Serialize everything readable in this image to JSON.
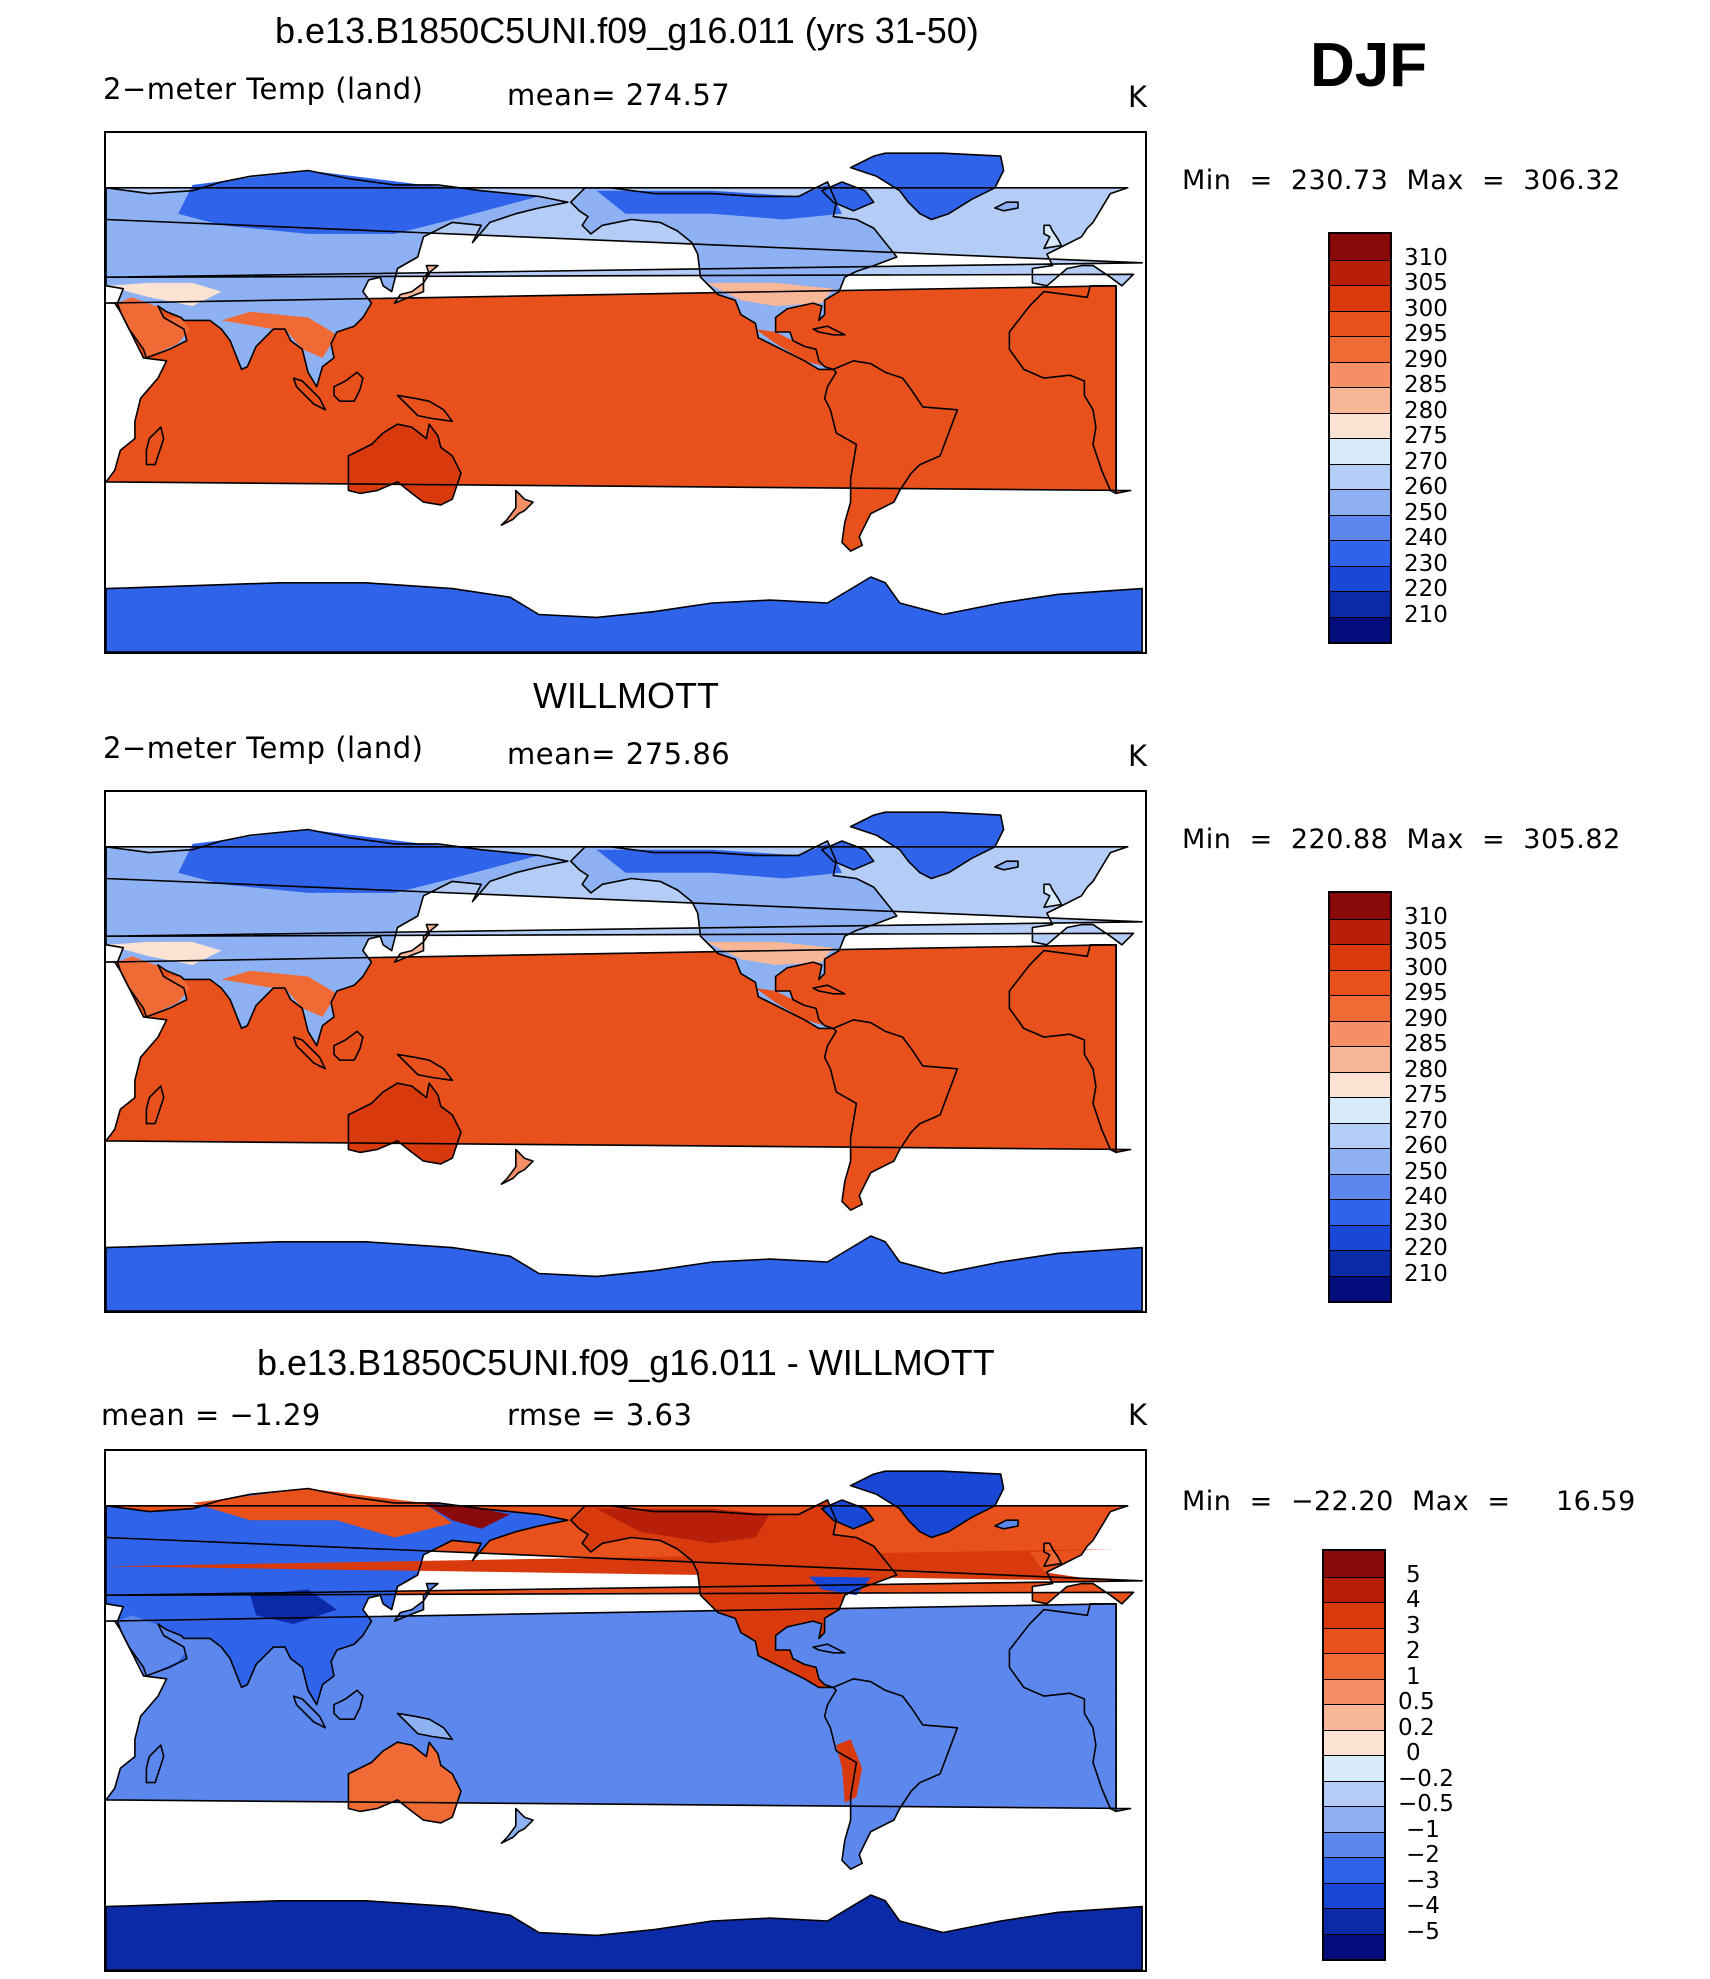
{
  "season": "DJF",
  "panels": [
    {
      "title": "b.e13.B1850C5UNI.f09_g16.011 (yrs 31-50)",
      "left_label": "2−meter Temp (land)",
      "center_label": "mean= 274.57",
      "units": "K",
      "minmax": "Min  =  230.73  Max  =  306.32",
      "style": "temp"
    },
    {
      "title": "WILLMOTT",
      "left_label": "2−meter Temp (land)",
      "center_label": "mean= 275.86",
      "units": "K",
      "minmax": "Min  =  220.88  Max  =  305.82",
      "style": "temp"
    },
    {
      "title": "b.e13.B1850C5UNI.f09_g16.011 - WILLMOTT",
      "left_label": "mean  =    −1.29",
      "center_label": "rmse  =      3.63",
      "units": "K",
      "minmax": "Min  =  −22.20  Max  =     16.59",
      "style": "diff"
    }
  ],
  "colorbars": {
    "temp": {
      "labels": [
        "310",
        "305",
        "300",
        "295",
        "290",
        "285",
        "280",
        "275",
        "270",
        "260",
        "250",
        "240",
        "230",
        "220",
        "210"
      ],
      "colors": [
        "#8a0a0a",
        "#b81f08",
        "#d83a0e",
        "#e8501c",
        "#f06a36",
        "#f59066",
        "#f8b796",
        "#fce2d2",
        "#d8ebfa",
        "#b4cdf6",
        "#8eb1f3",
        "#5c88ee",
        "#2f63ea",
        "#1947d6",
        "#0b2aa8",
        "#050c7c"
      ]
    },
    "diff": {
      "labels": [
        "5",
        "4",
        "3",
        "2",
        "1",
        "0.5",
        "0.2",
        "0",
        "−0.2",
        "−0.5",
        "−1",
        "−2",
        "−3",
        "−4",
        "−5"
      ],
      "colors": [
        "#8a0a0a",
        "#b81f08",
        "#d83a0e",
        "#e8501c",
        "#f06a36",
        "#f59066",
        "#f8b796",
        "#fce2d2",
        "#d8ebfa",
        "#b4cdf6",
        "#8eb1f3",
        "#5c88ee",
        "#2f63ea",
        "#1947d6",
        "#0b2aa8",
        "#050c7c"
      ]
    }
  }
}
